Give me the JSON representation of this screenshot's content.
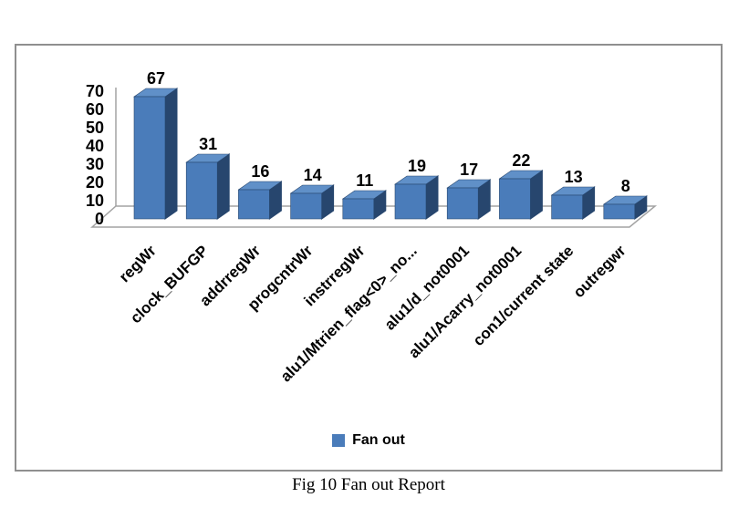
{
  "chart_data": {
    "type": "bar",
    "style": "3d-column",
    "title": "",
    "legend": "Fan out",
    "legend_position": "bottom-center",
    "categories": [
      "regWr",
      "clock_BUFGP",
      "addrregWr",
      "progcntrWr",
      "instrregWr",
      "alu1/Mtrien_flag<0>_no...",
      "alu1/d_not0001",
      "alu1/Acarry_not0001",
      "con1/current state",
      "outregwr"
    ],
    "values": [
      67,
      31,
      16,
      14,
      11,
      19,
      17,
      22,
      13,
      8
    ],
    "data_labels_shown": true,
    "xlabel": "",
    "ylabel": "",
    "ylim": [
      0,
      70
    ],
    "yticks": [
      0,
      10,
      20,
      30,
      40,
      50,
      60,
      70
    ],
    "grid": false,
    "colors": {
      "bar_front": "#4a7cba",
      "bar_side": "#27466e",
      "bar_top": "#6090c8",
      "axis": "#a3a3a3",
      "frame_border": "#8f8f8f",
      "text": "#000000"
    }
  },
  "caption": "Fig 10 Fan out Report"
}
